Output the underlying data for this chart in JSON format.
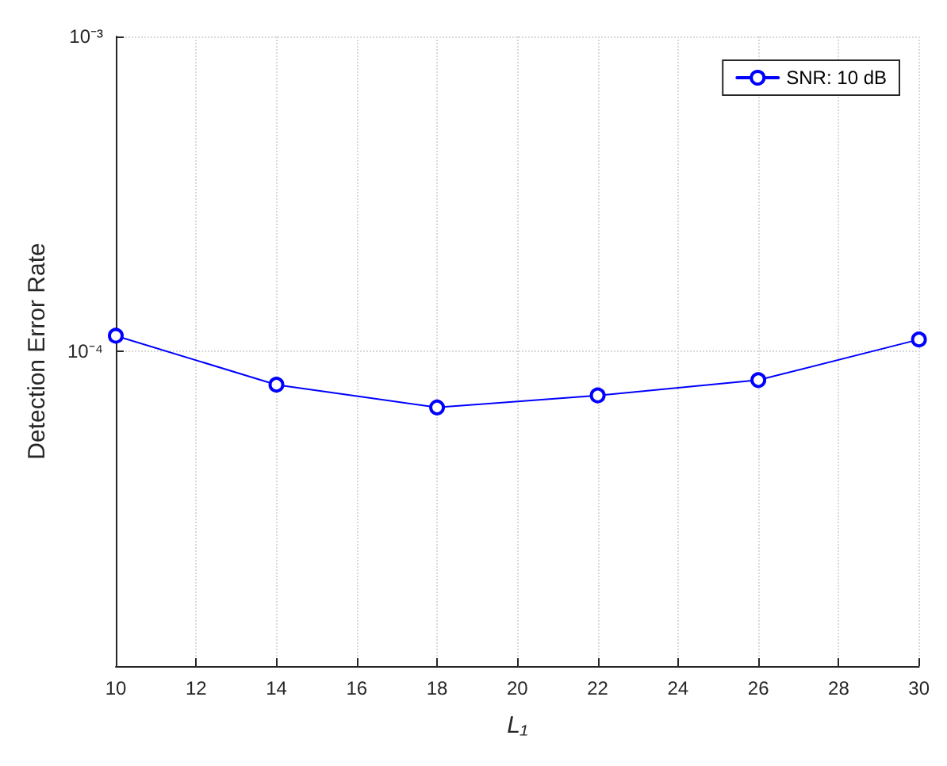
{
  "chart_data": {
    "type": "line",
    "xlabel": "L₁",
    "ylabel": "Detection Error Rate",
    "x": [
      10,
      14,
      18,
      22,
      26,
      30
    ],
    "series": [
      {
        "name": "SNR: 10 dB",
        "color": "#0000ff",
        "values": [
          0.000112,
          7.83e-05,
          6.63e-05,
          7.24e-05,
          8.1e-05,
          0.000109
        ]
      }
    ],
    "log": "y",
    "xlim": [
      10,
      30
    ],
    "xticks": [
      10,
      12,
      14,
      16,
      18,
      20,
      22,
      24,
      26,
      28,
      30
    ],
    "ylim": [
      1e-05,
      0.001
    ],
    "yticks": [
      {
        "value": 1e-05,
        "label": null
      },
      {
        "value": 0.0001,
        "label": "10⁻⁴"
      },
      {
        "value": 0.001,
        "label": "10⁻³"
      }
    ],
    "grid": true,
    "legend": "top right",
    "marker": "circle",
    "line_style": "solid"
  }
}
